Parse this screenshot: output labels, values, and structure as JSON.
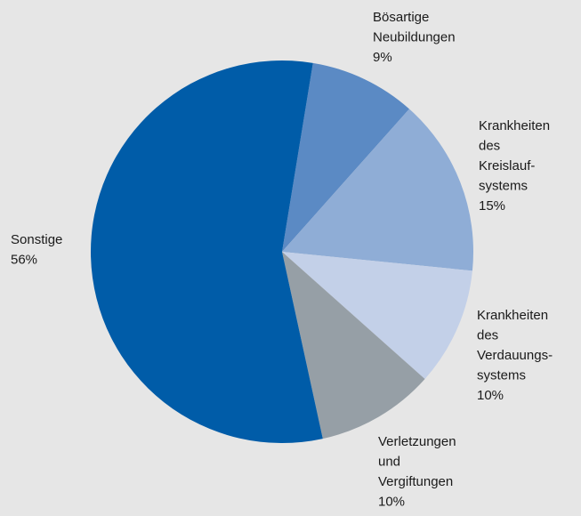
{
  "chart_data": {
    "type": "pie",
    "categories": [
      "Bösartige\nNeubildungen",
      "Krankheiten\ndes\nKreislauf-\nsystems",
      "Krankheiten\ndes\nVerdauungs-\nsystems",
      "Verletzungen\nund\nVergiftungen",
      "Sonstige"
    ],
    "values": [
      9,
      15,
      10,
      10,
      56
    ],
    "value_labels": [
      "9%",
      "15%",
      "10%",
      "10%",
      "56%"
    ],
    "colors": [
      "#5b8ac4",
      "#8fadd6",
      "#c3d0e8",
      "#969fa6",
      "#005ca8"
    ]
  }
}
